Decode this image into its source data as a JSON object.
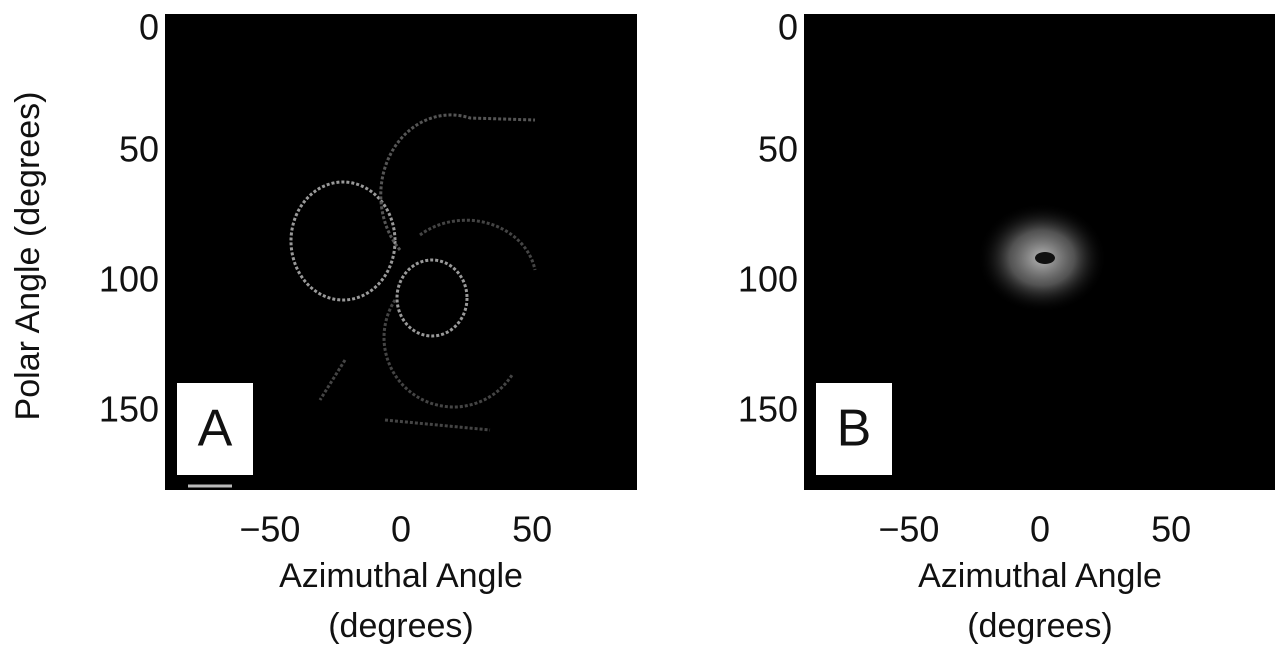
{
  "chart_data": [
    {
      "type": "image",
      "panel_label": "A",
      "ylabel": "Polar Angle (degrees)",
      "xlabel": [
        "Azimuthal Angle",
        "(degrees)"
      ],
      "xlim": [
        -90,
        90
      ],
      "ylim": [
        0,
        180
      ],
      "xticks": [
        {
          "value": -50,
          "label": "−50"
        },
        0,
        50
      ],
      "yticks": [
        0,
        50,
        100,
        150
      ]
    },
    {
      "type": "image",
      "panel_label": "B",
      "xlabel": [
        "Azimuthal Angle",
        "(degrees)"
      ],
      "xlim": [
        -90,
        90
      ],
      "ylim": [
        0,
        180
      ],
      "xticks": [
        {
          "value": -50,
          "label": "−50"
        },
        0,
        50
      ],
      "yticks": [
        0,
        50,
        100,
        150
      ]
    }
  ]
}
